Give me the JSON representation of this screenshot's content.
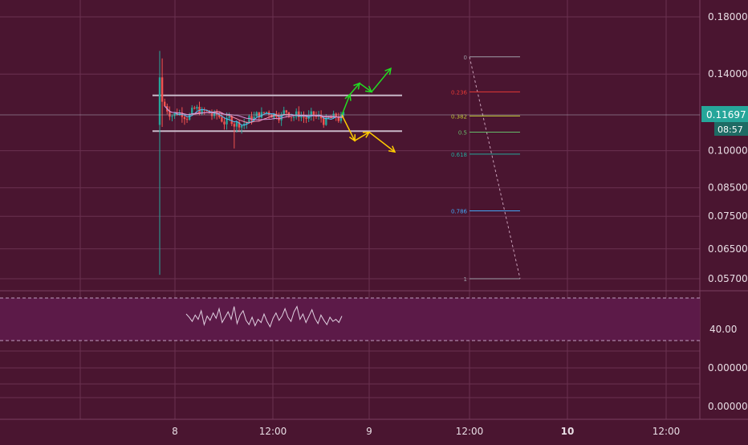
{
  "chart_data": {
    "type": "candlestick",
    "price_axis": {
      "scale": "log",
      "tick_labels": [
        "0.18000",
        "0.14000",
        "0.10000",
        "0.08500",
        "0.07500",
        "0.06500",
        "0.05700"
      ],
      "tick_values": [
        0.18,
        0.14,
        0.1,
        0.085,
        0.075,
        0.065,
        0.057
      ]
    },
    "current_price": {
      "label": "0.11697",
      "value": 0.11697,
      "countdown": "08:57",
      "color": "#26a69a"
    },
    "oscillator": {
      "tick_label": "40.00",
      "band": [
        30,
        70
      ],
      "values": [
        55,
        52,
        48,
        54,
        50,
        58,
        45,
        53,
        49,
        56,
        51,
        60,
        47,
        52,
        57,
        50,
        62,
        46,
        54,
        58,
        49,
        45,
        52,
        44,
        50,
        47,
        55,
        48,
        43,
        51,
        56,
        49,
        53,
        60,
        52,
        48,
        57,
        62,
        50,
        55,
        47,
        53,
        59,
        51,
        46,
        54,
        49,
        45,
        52,
        48,
        50,
        47,
        53
      ]
    },
    "extra_pane_ticks": [
      "0.00000",
      "0.00000"
    ],
    "time_axis": {
      "labels": [
        "8",
        "12:00",
        "9",
        "12:00",
        "10",
        "12:00"
      ],
      "bold": [
        false,
        false,
        false,
        false,
        true,
        false
      ]
    },
    "range": {
      "upper": 0.1275,
      "lower": 0.109
    },
    "candles_summary": {
      "first_spike_high": 0.155,
      "first_spike_low": 0.058,
      "consolidation_center": 0.1165,
      "count": 75
    },
    "scenarios": [
      {
        "direction": "up",
        "color": "#22dd22",
        "targets": [
          0.128,
          0.1345,
          0.1295,
          0.1435
        ]
      },
      {
        "direction": "down",
        "color": "#ffcc00",
        "targets": [
          0.1045,
          0.1085,
          0.0995
        ]
      }
    ],
    "fibonacci": [
      {
        "level": "0",
        "price": 0.151,
        "color": "#9e9ea8"
      },
      {
        "level": "0.236",
        "price": 0.1295,
        "color": "#e53935"
      },
      {
        "level": "0.382",
        "price": 0.1165,
        "color": "#c0ca33"
      },
      {
        "level": "0.5",
        "price": 0.1085,
        "color": "#66bb6a"
      },
      {
        "level": "0.618",
        "price": 0.0985,
        "color": "#26a69a"
      },
      {
        "level": "0.786",
        "price": 0.0768,
        "color": "#42a5f5"
      },
      {
        "level": "1",
        "price": 0.057,
        "color": "#9e9ea8"
      }
    ]
  }
}
